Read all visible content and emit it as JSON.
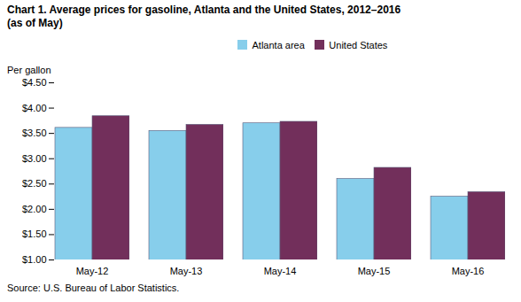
{
  "chart_data": {
    "type": "bar",
    "title": "Chart 1.  Average prices for gasoline, Atlanta and the United States, 2012–2016",
    "subtitle": "(as of May)",
    "y_label": "Per gallon",
    "annotations": [
      "Source:  U.S. Bureau of Labor Statistics."
    ],
    "categories": [
      "May-12",
      "May-13",
      "May-14",
      "May-15",
      "May-16"
    ],
    "series": [
      {
        "name": "Atlanta area",
        "color": "#87CEEB",
        "values": [
          3.61,
          3.55,
          3.7,
          2.6,
          2.25
        ]
      },
      {
        "name": "United States",
        "color": "#722F5B",
        "values": [
          3.84,
          3.67,
          3.73,
          2.82,
          2.34
        ]
      }
    ],
    "ylim": [
      1.0,
      4.5
    ],
    "yticks": [
      {
        "value": 1.0,
        "label": "$1.00"
      },
      {
        "value": 1.5,
        "label": "$1.50"
      },
      {
        "value": 2.0,
        "label": "$2.00"
      },
      {
        "value": 2.5,
        "label": "$2.50"
      },
      {
        "value": 3.0,
        "label": "$3.00"
      },
      {
        "value": 3.5,
        "label": "$3.50"
      },
      {
        "value": 4.0,
        "label": "$4.00"
      },
      {
        "value": 4.5,
        "label": "$4.50"
      }
    ],
    "grid": false,
    "legend": "top"
  }
}
